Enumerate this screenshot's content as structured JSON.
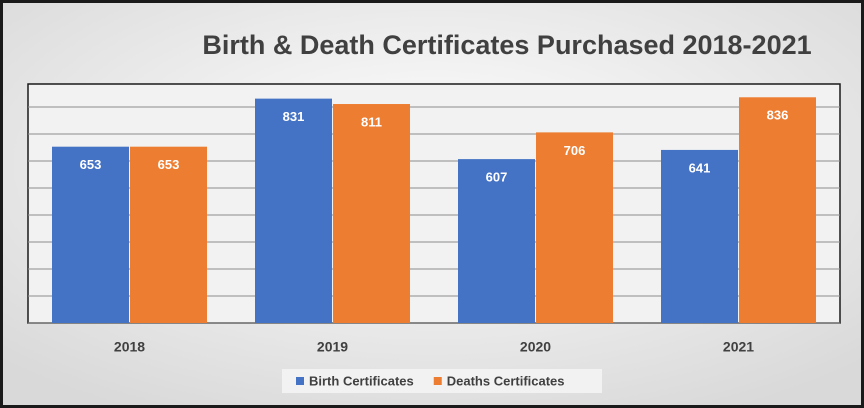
{
  "chart_data": {
    "type": "bar",
    "title": "Birth & Death Certificates Purchased 2018-2021",
    "categories": [
      "2018",
      "2019",
      "2020",
      "2021"
    ],
    "series": [
      {
        "name": "Birth Certificates",
        "color": "#4472c4",
        "values": [
          653,
          831,
          607,
          641
        ]
      },
      {
        "name": "Deaths Certificates",
        "color": "#ed7d31",
        "values": [
          653,
          811,
          706,
          836
        ]
      }
    ],
    "ylim": [
      0,
      900
    ],
    "yticks": [
      0,
      100,
      200,
      300,
      400,
      500,
      600,
      700,
      800,
      900
    ],
    "grid": true,
    "tick_labels": false,
    "legend": "bottom"
  }
}
